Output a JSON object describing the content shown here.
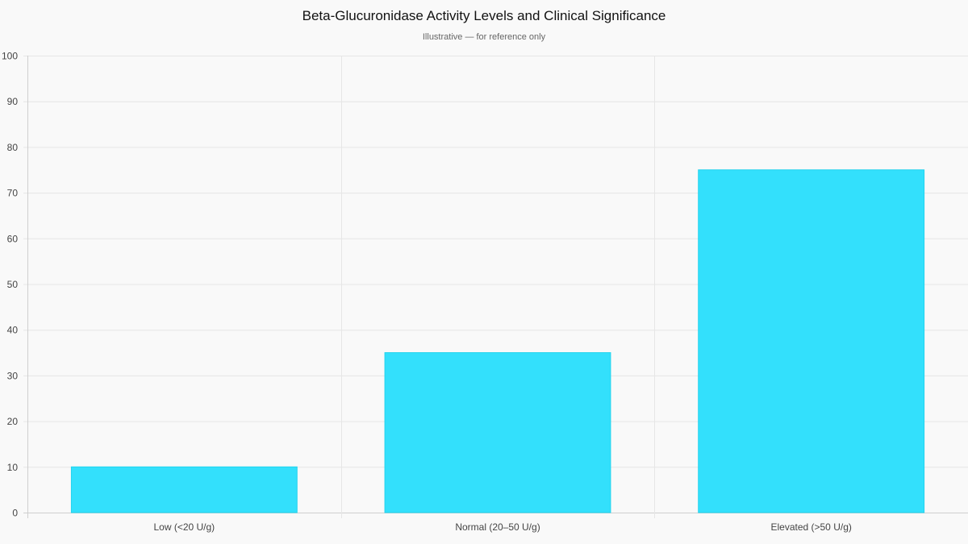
{
  "chart_data": {
    "type": "bar",
    "title": "Beta-Glucuronidase Activity Levels and Clinical Significance",
    "subtitle": "Illustrative — for reference only",
    "categories": [
      "Low (<20 U/g)",
      "Normal (20–50 U/g)",
      "Elevated (>50 U/g)"
    ],
    "values": [
      10,
      35,
      75
    ],
    "xlabel": "",
    "ylabel": "",
    "ylim": [
      0,
      100
    ],
    "yticks": [
      0,
      10,
      20,
      30,
      40,
      50,
      60,
      70,
      80,
      90,
      100
    ],
    "grid": true,
    "legend": null,
    "bar_color": "#33e0fc",
    "bar_border_color": "#22d3ee"
  }
}
